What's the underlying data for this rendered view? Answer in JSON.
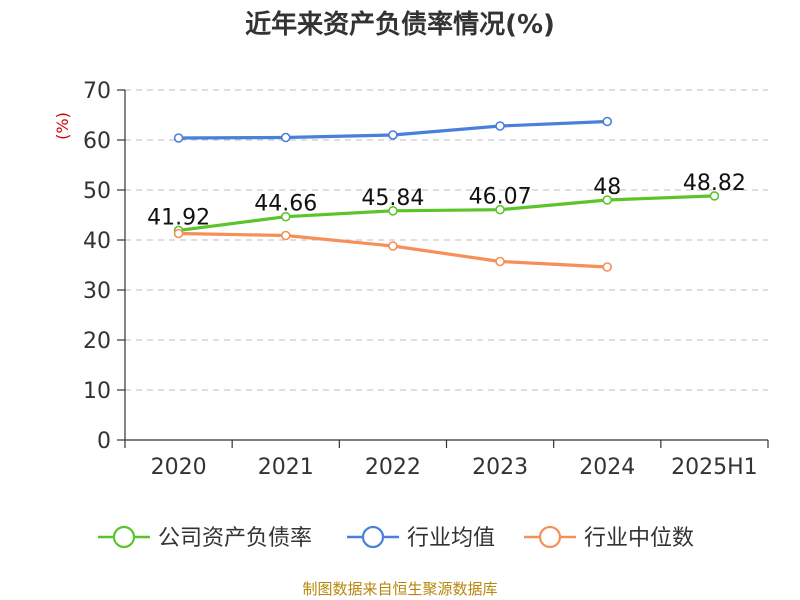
{
  "chart_data": {
    "type": "line",
    "title": "近年来资产负债率情况(%)",
    "ylabel": "(%)",
    "xlabel": "",
    "categories": [
      "2020",
      "2021",
      "2022",
      "2023",
      "2024",
      "2025H1"
    ],
    "ylim": [
      0,
      70
    ],
    "yticks": [
      0,
      10,
      20,
      30,
      40,
      50,
      60,
      70
    ],
    "grid": true,
    "legend_position": "bottom",
    "series": [
      {
        "name": "公司资产负债率",
        "color": "#5cc42b",
        "values": [
          41.92,
          44.66,
          45.84,
          46.07,
          48,
          48.82
        ],
        "labels": [
          "41.92",
          "44.66",
          "45.84",
          "46.07",
          "48",
          "48.82"
        ]
      },
      {
        "name": "行业均值",
        "color": "#4a7fdc",
        "values": [
          60.4,
          60.5,
          61.0,
          62.8,
          63.7,
          null
        ]
      },
      {
        "name": "行业中位数",
        "color": "#f68f58",
        "values": [
          41.3,
          40.9,
          38.8,
          35.7,
          34.6,
          null
        ]
      }
    ]
  },
  "source": "制图数据来自恒生聚源数据库"
}
